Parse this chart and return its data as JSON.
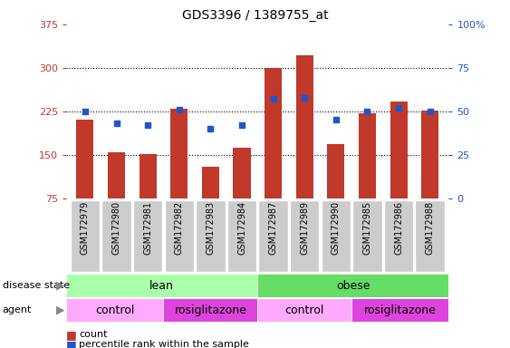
{
  "title": "GDS3396 / 1389755_at",
  "samples": [
    "GSM172979",
    "GSM172980",
    "GSM172981",
    "GSM172982",
    "GSM172983",
    "GSM172984",
    "GSM172987",
    "GSM172989",
    "GSM172990",
    "GSM172985",
    "GSM172986",
    "GSM172988"
  ],
  "counts": [
    210,
    155,
    152,
    230,
    130,
    162,
    300,
    322,
    168,
    222,
    242,
    227
  ],
  "percentiles": [
    50,
    43,
    42,
    51,
    40,
    42,
    57,
    58,
    45,
    50,
    52,
    50
  ],
  "ylim_left": [
    75,
    375
  ],
  "ylim_right": [
    0,
    100
  ],
  "yticks_left": [
    75,
    150,
    225,
    300,
    375
  ],
  "yticks_left_labels": [
    "75",
    "150",
    "225",
    "300",
    "375"
  ],
  "yticks_right": [
    0,
    25,
    50,
    75,
    100
  ],
  "yticks_right_labels": [
    "0",
    "25",
    "50",
    "75",
    "100%"
  ],
  "bar_color": "#C0392B",
  "dot_color": "#2255CC",
  "grid_color": "black",
  "xtick_bg_color": "#CCCCCC",
  "disease_state_labels": [
    "lean",
    "obese"
  ],
  "disease_state_color_lean": "#AAFFAA",
  "disease_state_color_obese": "#66DD66",
  "agent_labels": [
    "control",
    "rosiglitazone",
    "control",
    "rosiglitazone"
  ],
  "agent_color_control": "#FFAAFF",
  "agent_color_rosi": "#DD44DD",
  "row_labels": [
    "disease state",
    "agent"
  ],
  "legend_count_label": "count",
  "legend_percentile_label": "percentile rank within the sample"
}
